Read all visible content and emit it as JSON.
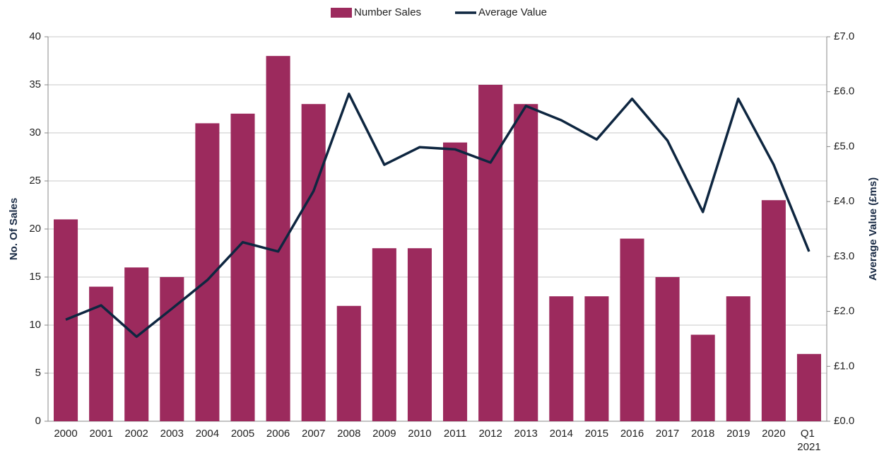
{
  "chart_data": {
    "type": "bar-line",
    "categories": [
      "2000",
      "2001",
      "2002",
      "2003",
      "2004",
      "2005",
      "2006",
      "2007",
      "2008",
      "2009",
      "2010",
      "2011",
      "2012",
      "2013",
      "2014",
      "2015",
      "2016",
      "2017",
      "2018",
      "2019",
      "2020",
      "Q1 2021"
    ],
    "series": [
      {
        "name": "Number Sales",
        "color": "#9c2a5d",
        "type": "bar",
        "axis": "y",
        "values": [
          21,
          14,
          16,
          15,
          31,
          32,
          38,
          33,
          12,
          18,
          18,
          29,
          35,
          33,
          13,
          13,
          19,
          15,
          9,
          13,
          23,
          7
        ]
      },
      {
        "name": "Average Value",
        "color": "#0e2640",
        "type": "line",
        "axis": "y2",
        "values": [
          1.85,
          2.11,
          1.54,
          2.05,
          2.57,
          3.26,
          3.09,
          4.19,
          5.96,
          4.67,
          4.99,
          4.95,
          4.71,
          5.74,
          5.48,
          5.13,
          5.87,
          5.11,
          3.81,
          5.87,
          4.67,
          3.09
        ]
      }
    ],
    "ylabel": "No. Of Sales",
    "y2label": "Average Value (£ms)",
    "ylim": [
      0,
      40
    ],
    "yticks": [
      0,
      5,
      10,
      15,
      20,
      25,
      30,
      35,
      40
    ],
    "y2lim": [
      0,
      7
    ],
    "y2ticks": [
      {
        "value": 0,
        "label": "£0.0"
      },
      {
        "value": 1,
        "label": "£1.0"
      },
      {
        "value": 2,
        "label": "£2.0"
      },
      {
        "value": 3,
        "label": "£3.0"
      },
      {
        "value": 4,
        "label": "£4.0"
      },
      {
        "value": 5,
        "label": "£5.0"
      },
      {
        "value": 6,
        "label": "£6.0"
      },
      {
        "value": 7,
        "label": "£7.0"
      }
    ],
    "grid": true,
    "legend": "top"
  }
}
